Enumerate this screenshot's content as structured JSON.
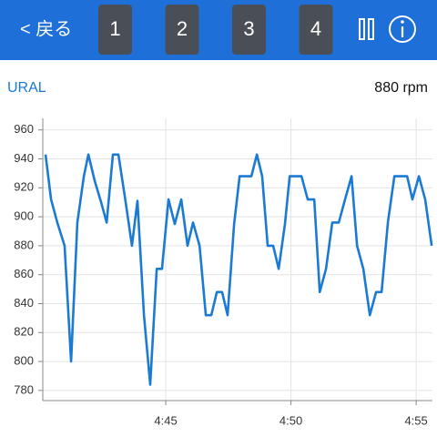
{
  "header": {
    "back": "< 戻る",
    "tabs": [
      "1",
      "2",
      "3",
      "4"
    ]
  },
  "sensor": {
    "name": "URAL",
    "reading": "880 rpm"
  },
  "chart_data": {
    "type": "line",
    "x": [
      280.2,
      280.42,
      280.67,
      280.96,
      281.22,
      281.47,
      281.73,
      281.91,
      282.16,
      282.42,
      282.64,
      282.89,
      283.11,
      283.4,
      283.65,
      283.87,
      284.13,
      284.38,
      284.64,
      284.85,
      285.11,
      285.36,
      285.62,
      285.87,
      286.09,
      286.35,
      286.6,
      286.82,
      287.04,
      287.25,
      287.47,
      287.73,
      287.95,
      288.2,
      288.42,
      288.64,
      288.85,
      289.07,
      289.29,
      289.51,
      289.76,
      289.95,
      290.2,
      290.42,
      290.67,
      290.93,
      291.15,
      291.4,
      291.65,
      291.91,
      292.16,
      292.42,
      292.64,
      292.89,
      293.15,
      293.4,
      293.62,
      293.87,
      294.13,
      294.38,
      294.64,
      294.85,
      295.11,
      295.36,
      295.62
    ],
    "series": [
      {
        "color": "#1a7ad4",
        "values": [
          943,
          912,
          896,
          880,
          800,
          896,
          928,
          943,
          925,
          910,
          896,
          943,
          943,
          910,
          880,
          911,
          832,
          784,
          864,
          864,
          912,
          895,
          912,
          880,
          896,
          880,
          832,
          832,
          848,
          848,
          832,
          895,
          928,
          928,
          928,
          943,
          928,
          880,
          880,
          864,
          895,
          928,
          928,
          928,
          912,
          912,
          848,
          864,
          896,
          896,
          912,
          928,
          880,
          864,
          832,
          848,
          848,
          896,
          928,
          928,
          928,
          912,
          928,
          912,
          880
        ]
      }
    ],
    "xlim": [
      280.09,
      295.65
    ],
    "xticks": [
      {
        "value": 285,
        "label": "4:45"
      },
      {
        "value": 290,
        "label": "4:50"
      },
      {
        "value": 295,
        "label": "4:55"
      }
    ],
    "ylim": [
      773,
      968
    ],
    "yticks": [
      780,
      800,
      820,
      840,
      860,
      880,
      900,
      920,
      940,
      960
    ],
    "grid": true
  }
}
